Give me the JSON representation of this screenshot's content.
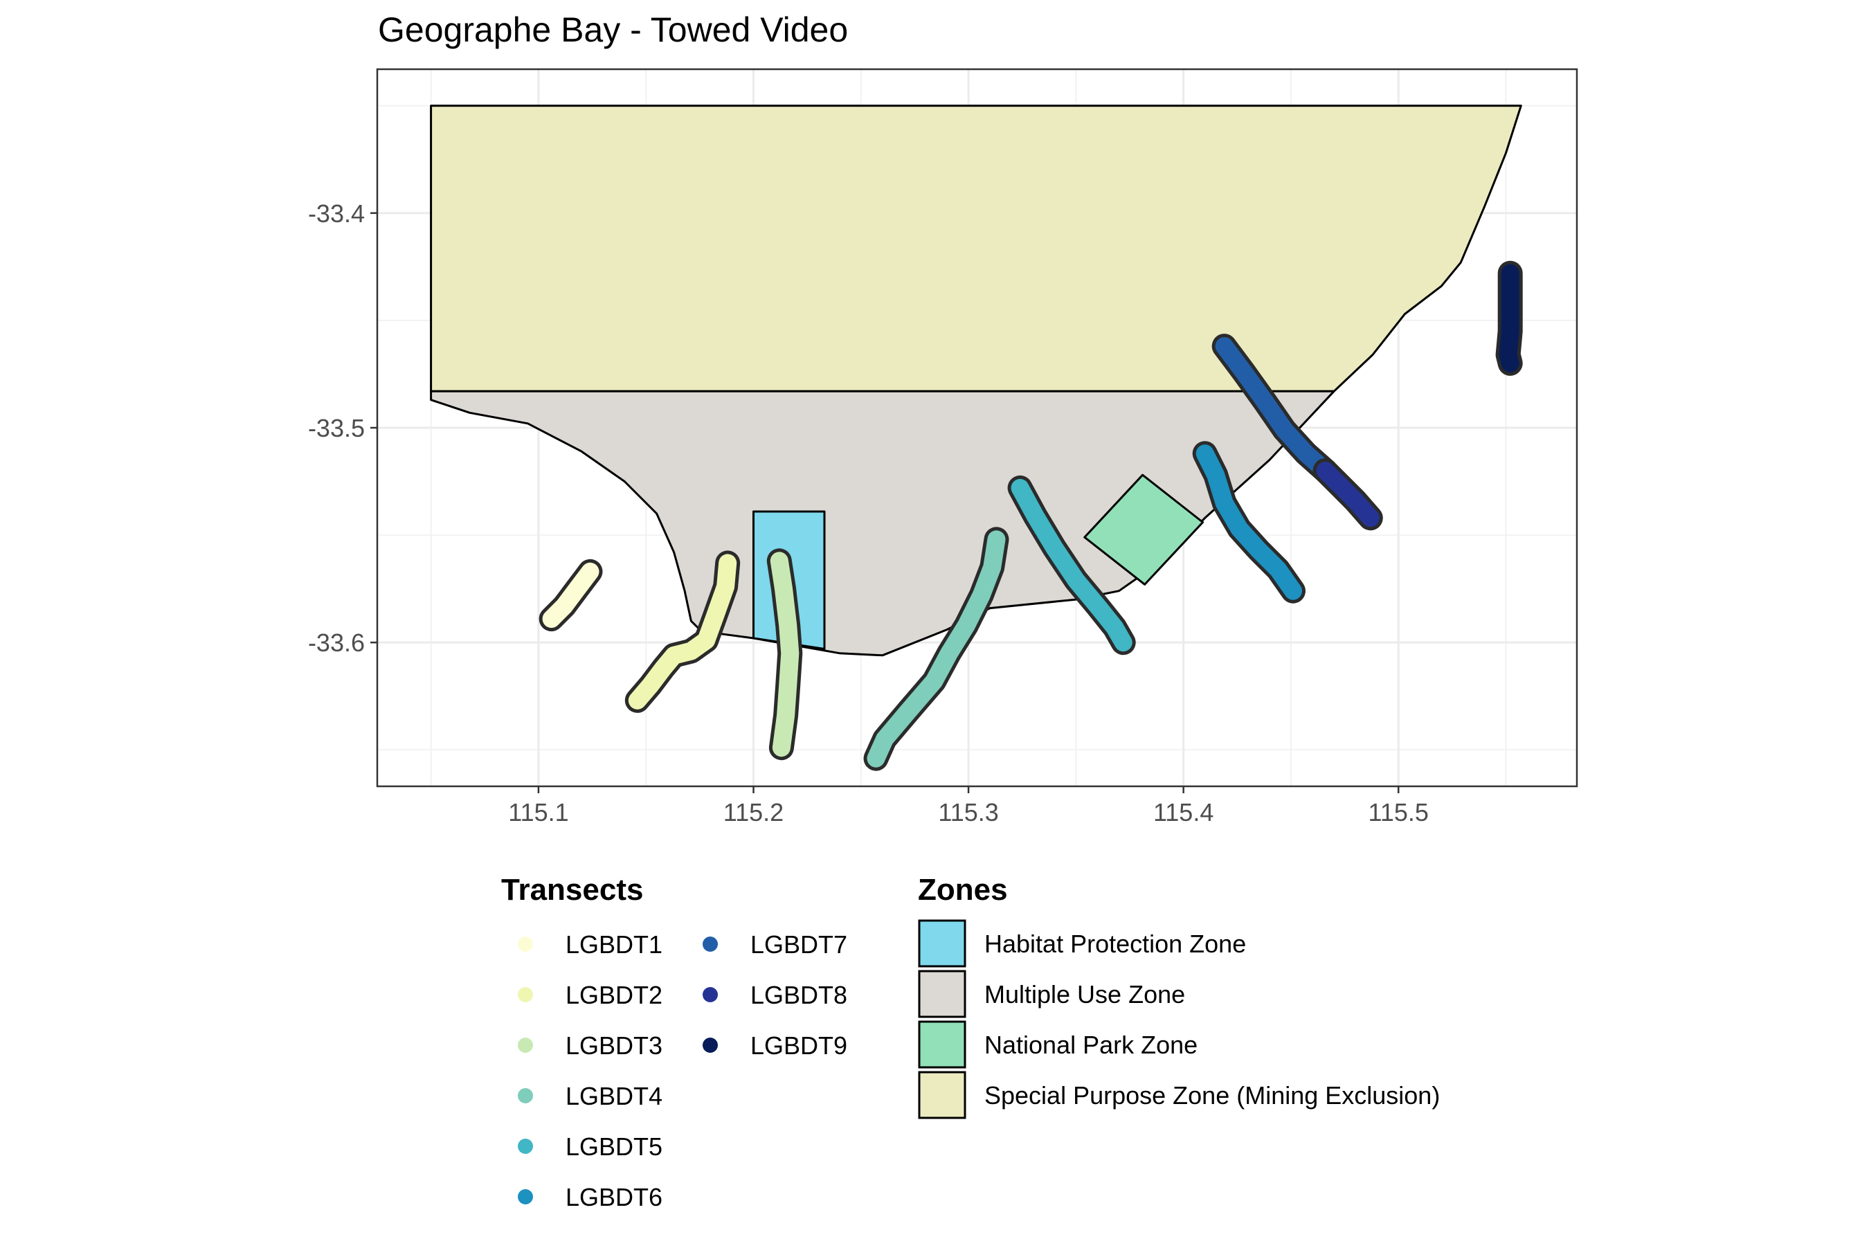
{
  "chart_data": {
    "type": "map",
    "title": "Geographe Bay - Towed Video",
    "xlim": [
      115.025,
      115.583
    ],
    "ylim": [
      -33.667,
      -33.333
    ],
    "x_ticks": [
      {
        "value": 115.1,
        "label": "115.1"
      },
      {
        "value": 115.2,
        "label": "115.2"
      },
      {
        "value": 115.3,
        "label": "115.3"
      },
      {
        "value": 115.4,
        "label": "115.4"
      },
      {
        "value": 115.5,
        "label": "115.5"
      }
    ],
    "y_ticks": [
      {
        "value": -33.4,
        "label": "-33.4"
      },
      {
        "value": -33.5,
        "label": "-33.5"
      },
      {
        "value": -33.6,
        "label": "-33.6"
      }
    ],
    "grid": true,
    "legend_placement": "bottom",
    "zones_legend": {
      "title": "Zones",
      "entries": [
        {
          "label": "Habitat Protection Zone",
          "color": "#7fd8ec"
        },
        {
          "label": "Multiple Use Zone",
          "color": "#dcd9d5"
        },
        {
          "label": "National Park Zone",
          "color": "#92e0b8"
        },
        {
          "label": "Special Purpose Zone (Mining Exclusion)",
          "color": "#ecebc0"
        }
      ]
    },
    "transects_legend": {
      "title": "Transects",
      "entries": [
        {
          "label": "LGBDT1",
          "color": "#fdfdd5"
        },
        {
          "label": "LGBDT2",
          "color": "#eef6b2"
        },
        {
          "label": "LGBDT3",
          "color": "#c9e9b4"
        },
        {
          "label": "LGBDT4",
          "color": "#7fcdbb"
        },
        {
          "label": "LGBDT5",
          "color": "#41b6c4"
        },
        {
          "label": "LGBDT6",
          "color": "#1d91c0"
        },
        {
          "label": "LGBDT7",
          "color": "#225ea8"
        },
        {
          "label": "LGBDT8",
          "color": "#253494"
        },
        {
          "label": "LGBDT9",
          "color": "#081d58"
        }
      ]
    },
    "zones": [
      {
        "name": "Special Purpose Zone (Mining Exclusion)",
        "color": "#ecebc0",
        "coords": [
          [
            115.05,
            -33.35
          ],
          [
            115.557,
            -33.35
          ],
          [
            115.55,
            -33.372
          ],
          [
            115.54,
            -33.397
          ],
          [
            115.529,
            -33.423
          ],
          [
            115.52,
            -33.434
          ],
          [
            115.503,
            -33.447
          ],
          [
            115.488,
            -33.466
          ],
          [
            115.47,
            -33.483
          ],
          [
            115.05,
            -33.483
          ]
        ]
      },
      {
        "name": "Multiple Use Zone",
        "color": "#dcd9d5",
        "coords": [
          [
            115.05,
            -33.483
          ],
          [
            115.47,
            -33.483
          ],
          [
            115.44,
            -33.515
          ],
          [
            115.41,
            -33.542
          ],
          [
            115.39,
            -33.562
          ],
          [
            115.37,
            -33.576
          ],
          [
            115.35,
            -33.58
          ],
          [
            115.31,
            -33.584
          ],
          [
            115.29,
            -33.594
          ],
          [
            115.26,
            -33.606
          ],
          [
            115.24,
            -33.605
          ],
          [
            115.2,
            -33.598
          ],
          [
            115.185,
            -33.596
          ],
          [
            115.175,
            -33.594
          ],
          [
            115.171,
            -33.59
          ],
          [
            115.168,
            -33.576
          ],
          [
            115.163,
            -33.558
          ],
          [
            115.155,
            -33.54
          ],
          [
            115.14,
            -33.525
          ],
          [
            115.12,
            -33.511
          ],
          [
            115.095,
            -33.498
          ],
          [
            115.068,
            -33.493
          ],
          [
            115.05,
            -33.487
          ]
        ]
      },
      {
        "name": "Habitat Protection Zone",
        "color": "#7fd8ec",
        "coords": [
          [
            115.2,
            -33.539
          ],
          [
            115.233,
            -33.539
          ],
          [
            115.233,
            -33.603
          ],
          [
            115.2,
            -33.598
          ]
        ]
      },
      {
        "name": "National Park Zone",
        "color": "#92e0b8",
        "coords": [
          [
            115.381,
            -33.522
          ],
          [
            115.409,
            -33.544
          ],
          [
            115.382,
            -33.573
          ],
          [
            115.354,
            -33.551
          ]
        ]
      }
    ],
    "transects": [
      {
        "name": "LGBDT1",
        "color": "#fdfdd5",
        "points": [
          [
            115.124,
            -33.567
          ],
          [
            115.118,
            -33.575
          ],
          [
            115.112,
            -33.583
          ],
          [
            115.106,
            -33.589
          ]
        ]
      },
      {
        "name": "LGBDT2",
        "color": "#eef6b2",
        "points": [
          [
            115.188,
            -33.563
          ],
          [
            115.187,
            -33.574
          ],
          [
            115.182,
            -33.588
          ],
          [
            115.178,
            -33.599
          ],
          [
            115.171,
            -33.604
          ],
          [
            115.163,
            -33.606
          ],
          [
            115.158,
            -33.612
          ],
          [
            115.152,
            -33.62
          ],
          [
            115.146,
            -33.627
          ]
        ]
      },
      {
        "name": "LGBDT3",
        "color": "#c9e9b4",
        "points": [
          [
            115.212,
            -33.562
          ],
          [
            115.214,
            -33.575
          ],
          [
            115.216,
            -33.592
          ],
          [
            115.217,
            -33.605
          ],
          [
            115.216,
            -33.62
          ],
          [
            115.215,
            -33.634
          ],
          [
            115.213,
            -33.649
          ]
        ]
      },
      {
        "name": "LGBDT4",
        "color": "#7fcdbb",
        "points": [
          [
            115.313,
            -33.552
          ],
          [
            115.311,
            -33.565
          ],
          [
            115.306,
            -33.578
          ],
          [
            115.299,
            -33.592
          ],
          [
            115.291,
            -33.605
          ],
          [
            115.284,
            -33.618
          ],
          [
            115.272,
            -33.632
          ],
          [
            115.261,
            -33.645
          ],
          [
            115.257,
            -33.654
          ]
        ]
      },
      {
        "name": "LGBDT5",
        "color": "#41b6c4",
        "points": [
          [
            115.324,
            -33.528
          ],
          [
            115.331,
            -33.541
          ],
          [
            115.34,
            -33.556
          ],
          [
            115.35,
            -33.571
          ],
          [
            115.36,
            -33.583
          ],
          [
            115.368,
            -33.593
          ],
          [
            115.372,
            -33.6
          ]
        ]
      },
      {
        "name": "LGBDT6",
        "color": "#1d91c0",
        "points": [
          [
            115.41,
            -33.512
          ],
          [
            115.415,
            -33.522
          ],
          [
            115.419,
            -33.535
          ],
          [
            115.426,
            -33.547
          ],
          [
            115.435,
            -33.557
          ],
          [
            115.444,
            -33.566
          ],
          [
            115.451,
            -33.576
          ]
        ]
      },
      {
        "name": "LGBDT7",
        "color": "#225ea8",
        "points": [
          [
            115.419,
            -33.462
          ],
          [
            115.428,
            -33.474
          ],
          [
            115.438,
            -33.488
          ],
          [
            115.447,
            -33.501
          ],
          [
            115.457,
            -33.512
          ],
          [
            115.466,
            -33.52
          ]
        ]
      },
      {
        "name": "LGBDT8",
        "color": "#253494",
        "points": [
          [
            115.466,
            -33.52
          ],
          [
            115.473,
            -33.527
          ],
          [
            115.48,
            -33.534
          ],
          [
            115.487,
            -33.542
          ]
        ]
      },
      {
        "name": "LGBDT9",
        "color": "#081d58",
        "points": [
          [
            115.552,
            -33.428
          ],
          [
            115.552,
            -33.44
          ],
          [
            115.552,
            -33.455
          ],
          [
            115.551,
            -33.466
          ],
          [
            115.552,
            -33.47
          ]
        ]
      }
    ]
  }
}
